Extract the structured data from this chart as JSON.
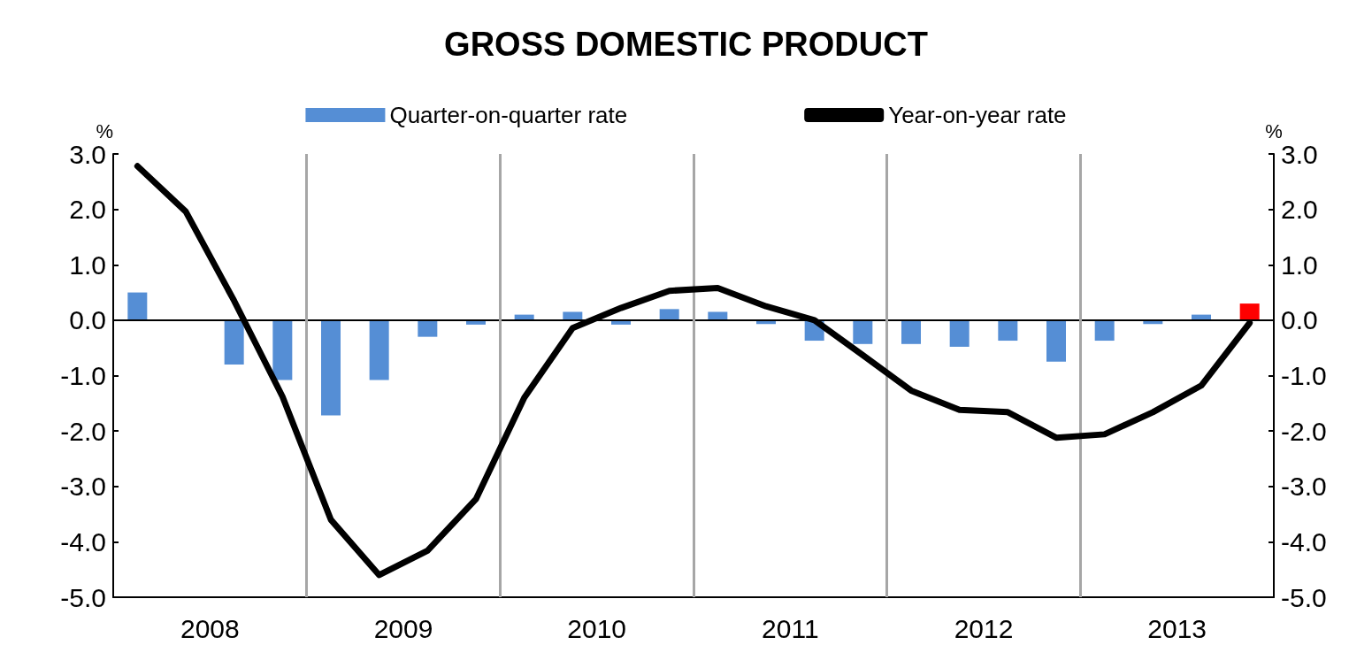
{
  "chart_data": {
    "type": "bar",
    "title": "GROSS DOMESTIC PRODUCT",
    "ylabel": "%",
    "y2label": "%",
    "x": [
      2008.125,
      2008.375,
      2008.625,
      2008.875,
      2009.125,
      2009.375,
      2009.625,
      2009.875,
      2010.125,
      2010.375,
      2010.625,
      2010.875,
      2011.125,
      2011.375,
      2011.625,
      2011.875,
      2012.125,
      2012.375,
      2012.625,
      2012.875,
      2013.125,
      2013.375,
      2013.625,
      2013.875
    ],
    "series": [
      {
        "name": "Quarter-on-quarter rate",
        "color": "#558ed5",
        "colors": [
          "#558ed5",
          "#558ed5",
          "#558ed5",
          "#558ed5",
          "#558ed5",
          "#558ed5",
          "#558ed5",
          "#558ed5",
          "#558ed5",
          "#558ed5",
          "#558ed5",
          "#558ed5",
          "#558ed5",
          "#558ed5",
          "#558ed5",
          "#558ed5",
          "#558ed5",
          "#558ed5",
          "#558ed5",
          "#558ed5",
          "#558ed5",
          "#558ed5",
          "#558ed5",
          "#ff0000"
        ],
        "values": [
          0.5,
          null,
          -0.8,
          -1.08,
          -1.72,
          -1.08,
          -0.3,
          -0.08,
          0.1,
          0.15,
          -0.08,
          0.2,
          0.15,
          -0.07,
          -0.37,
          -0.43,
          -0.43,
          -0.48,
          -0.37,
          -0.75,
          -0.37,
          -0.07,
          0.1,
          0.3
        ]
      },
      {
        "name": "Year-on-year rate",
        "type": "line",
        "color": "#000000",
        "values": [
          2.78,
          1.96,
          0.35,
          -1.38,
          -3.6,
          -4.6,
          -4.16,
          -3.23,
          -1.4,
          -0.14,
          0.22,
          0.53,
          0.58,
          0.25,
          0.0,
          -0.63,
          -1.27,
          -1.62,
          -1.66,
          -2.12,
          -2.06,
          -1.66,
          -1.18,
          -0.05
        ]
      }
    ],
    "xlim": [
      2008,
      2014
    ],
    "xticks": [
      {
        "value": 2008.5,
        "label": "2008"
      },
      {
        "value": 2009.5,
        "label": "2009"
      },
      {
        "value": 2010.5,
        "label": "2010"
      },
      {
        "value": 2011.5,
        "label": "2011"
      },
      {
        "value": 2012.5,
        "label": "2012"
      },
      {
        "value": 2013.5,
        "label": "2013"
      }
    ],
    "ylim": [
      -5,
      3
    ],
    "yticks": [
      {
        "value": -5,
        "label": "-5.0"
      },
      {
        "value": -4,
        "label": "-4.0"
      },
      {
        "value": -3,
        "label": "-3.0"
      },
      {
        "value": -2,
        "label": "-2.0"
      },
      {
        "value": -1,
        "label": "-1.0"
      },
      {
        "value": 0,
        "label": "0.0"
      },
      {
        "value": 1,
        "label": "1.0"
      },
      {
        "value": 2,
        "label": "2.0"
      },
      {
        "value": 3,
        "label": "3.0"
      }
    ],
    "y2lim": [
      -5,
      3
    ],
    "y2ticks": [
      {
        "value": -5,
        "label": "-5.0"
      },
      {
        "value": -4,
        "label": "-4.0"
      },
      {
        "value": -3,
        "label": "-3.0"
      },
      {
        "value": -2,
        "label": "-2.0"
      },
      {
        "value": -1,
        "label": "-1.0"
      },
      {
        "value": 0,
        "label": "0.0"
      },
      {
        "value": 1,
        "label": "1.0"
      },
      {
        "value": 2,
        "label": "2.0"
      },
      {
        "value": 3,
        "label": "3.0"
      }
    ],
    "ref_lines": [
      {
        "axis": "y",
        "value": 0,
        "color": "#000000"
      },
      {
        "axis": "x",
        "value": 2009,
        "color": "#a6a6a6"
      },
      {
        "axis": "x",
        "value": 2010,
        "color": "#a6a6a6"
      },
      {
        "axis": "x",
        "value": 2011,
        "color": "#a6a6a6"
      },
      {
        "axis": "x",
        "value": 2012,
        "color": "#a6a6a6"
      },
      {
        "axis": "x",
        "value": 2013,
        "color": "#a6a6a6"
      }
    ],
    "legend": "top",
    "marker": "none",
    "line_style": "solid"
  }
}
